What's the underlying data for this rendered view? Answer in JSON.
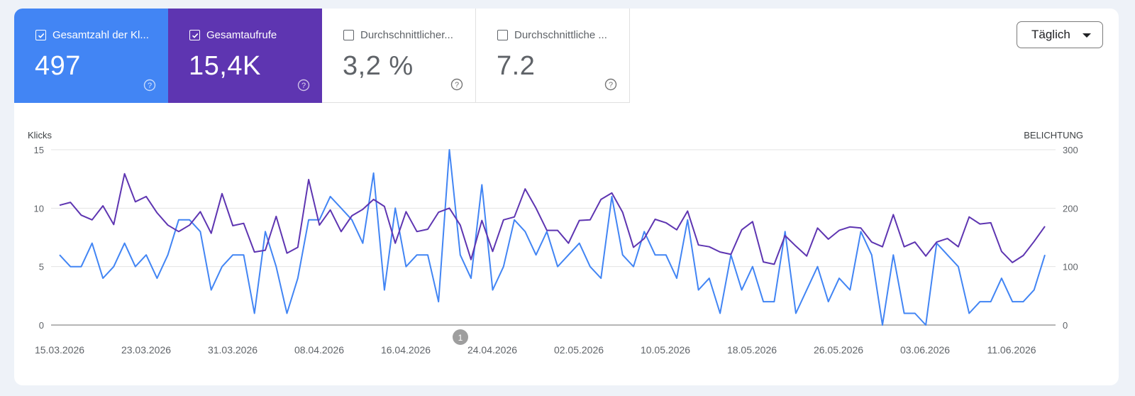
{
  "metrics": [
    {
      "label": "Gesamtzahl der Kl...",
      "value": "497",
      "checked": true,
      "color": "#4285f4"
    },
    {
      "label": "Gesamtaufrufe",
      "value": "15,4K",
      "checked": true,
      "color": "#5e35b1"
    },
    {
      "label": "Durchschnittlicher...",
      "value": "3,2 %",
      "checked": false,
      "color": "#ffffff"
    },
    {
      "label": "Durchschnittliche ...",
      "value": "7.2",
      "checked": false,
      "color": "#ffffff"
    }
  ],
  "dropdown": {
    "selected": "Täglich"
  },
  "chart_data": {
    "type": "line",
    "left_axis_label": "Klicks",
    "right_axis_label": "BELICHTUNG",
    "left_ticks": [
      "15",
      "10",
      "5",
      "0"
    ],
    "right_ticks": [
      "300",
      "200",
      "100",
      "0"
    ],
    "ylim_left": [
      0,
      15
    ],
    "ylim_right": [
      0,
      300
    ],
    "x_labels": [
      "15.03.2026",
      "23.03.2026",
      "31.03.2026",
      "08.04.2026",
      "16.04.2026",
      "24.04.2026",
      "02.05.2026",
      "10.05.2026",
      "18.05.2026",
      "26.05.2026",
      "03.06.2026",
      "11.06.2026"
    ],
    "annotation": {
      "label": "1",
      "date": "20.04.2026"
    },
    "series": [
      {
        "axis": "left",
        "color": "#4285f4",
        "values": [
          6,
          5,
          5,
          7,
          4,
          5,
          7,
          5,
          6,
          4,
          6,
          9,
          9,
          8,
          3,
          5,
          6,
          6,
          1,
          8,
          5,
          1,
          4,
          9,
          9,
          11,
          10,
          9,
          7,
          13,
          3,
          10,
          5,
          6,
          6,
          2,
          15,
          6,
          4,
          12,
          3,
          5,
          9,
          8,
          6,
          8,
          5,
          6,
          7,
          5,
          4,
          11,
          6,
          5,
          8,
          6,
          6,
          4,
          9,
          3,
          4,
          1,
          6,
          3,
          5,
          2,
          2,
          8,
          1,
          3,
          5,
          2,
          4,
          3,
          8,
          6,
          0,
          6,
          1,
          1,
          0,
          7,
          6,
          5,
          1,
          2,
          2,
          4,
          2,
          2,
          3,
          6
        ]
      },
      {
        "axis": "right",
        "color": "#5e35b1",
        "values": [
          205,
          210,
          188,
          180,
          204,
          172,
          259,
          211,
          220,
          192,
          171,
          160,
          171,
          194,
          157,
          225,
          170,
          174,
          125,
          128,
          186,
          123,
          133,
          249,
          171,
          197,
          160,
          187,
          198,
          215,
          203,
          140,
          194,
          160,
          164,
          193,
          200,
          171,
          112,
          179,
          126,
          180,
          185,
          233,
          200,
          162,
          162,
          140,
          179,
          180,
          215,
          226,
          193,
          133,
          148,
          181,
          175,
          163,
          195,
          137,
          134,
          125,
          121,
          163,
          177,
          108,
          104,
          153,
          135,
          118,
          166,
          147,
          162,
          168,
          166,
          142,
          134,
          189,
          134,
          142,
          118,
          142,
          148,
          134,
          185,
          173,
          175,
          126,
          107,
          119,
          143,
          169
        ]
      }
    ]
  }
}
